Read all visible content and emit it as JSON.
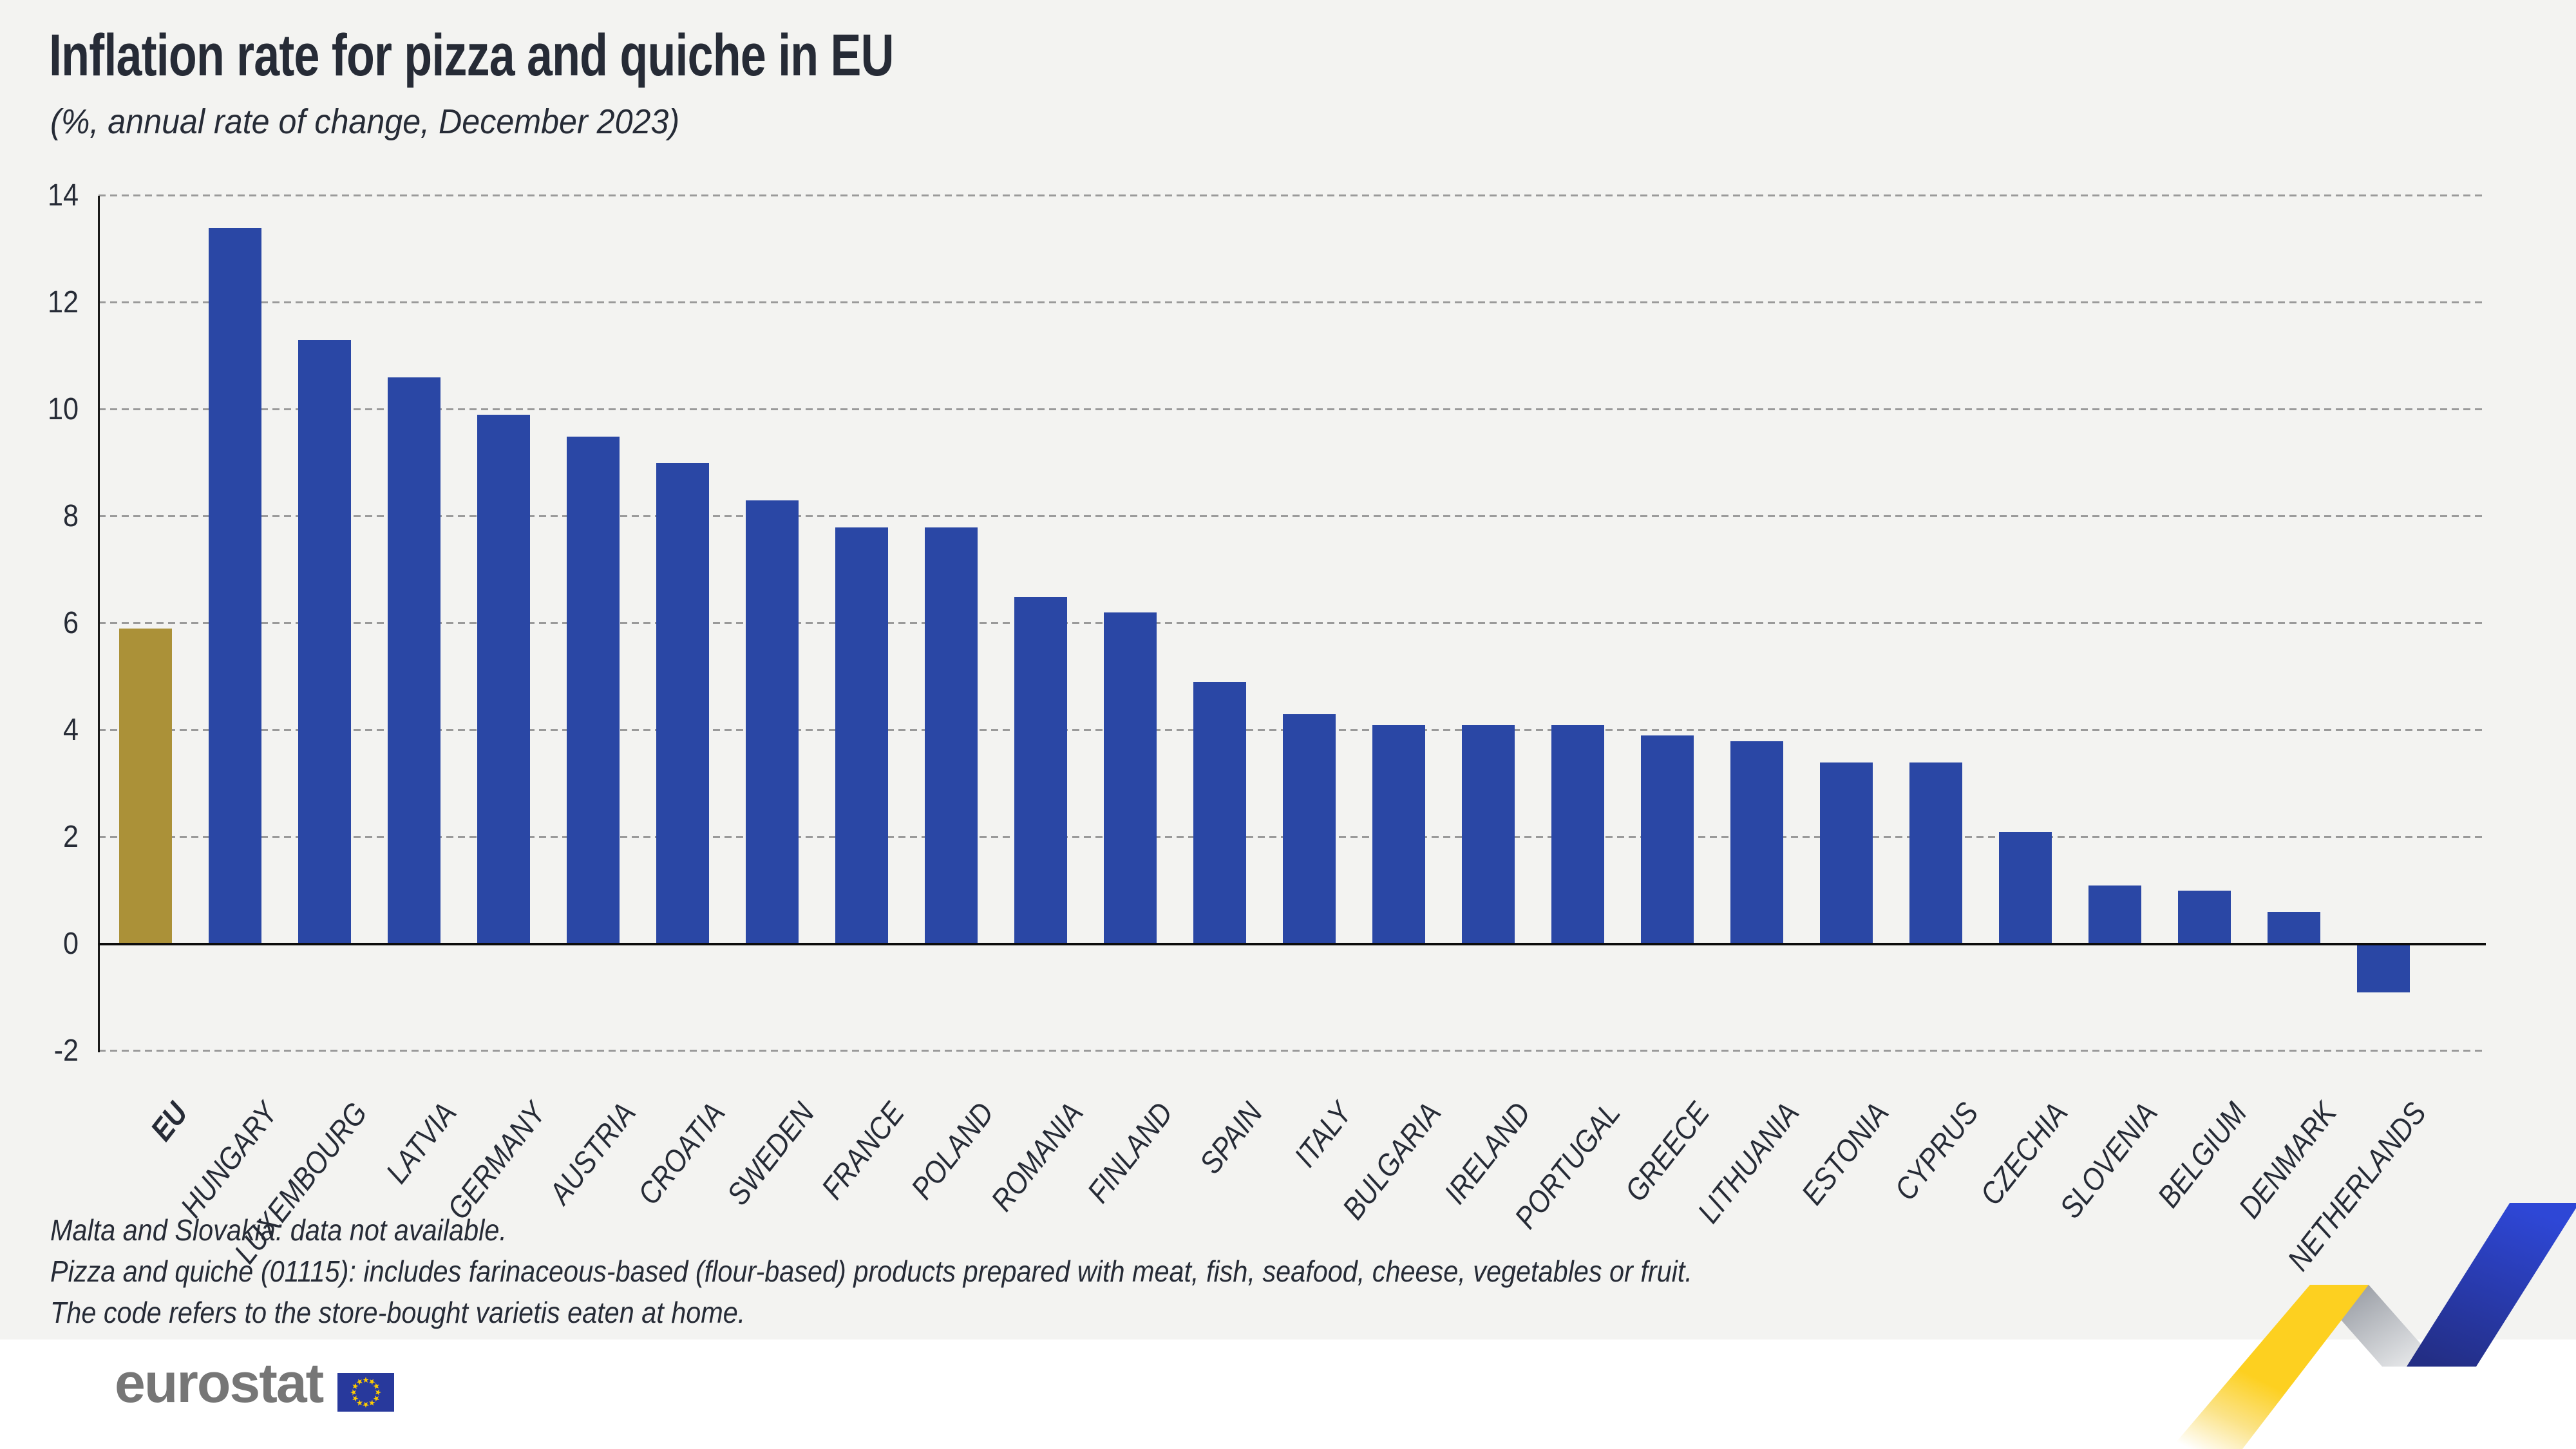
{
  "title": "Inflation rate for pizza and quiche in EU",
  "subtitle": "(%, annual rate of change, December 2023)",
  "chart_data": {
    "type": "bar",
    "categories": [
      "EU",
      "HUNGARY",
      "LUXEMBOURG",
      "LATVIA",
      "GERMANY",
      "AUSTRIA",
      "CROATIA",
      "SWEDEN",
      "FRANCE",
      "POLAND",
      "ROMANIA",
      "FINLAND",
      "SPAIN",
      "ITALY",
      "BULGARIA",
      "IRELAND",
      "PORTUGAL",
      "GREECE",
      "LITHUANIA",
      "ESTONIA",
      "CYPRUS",
      "CZECHIA",
      "SLOVENIA",
      "BELGIUM",
      "DENMARK",
      "NETHERLANDS"
    ],
    "values": [
      5.9,
      13.4,
      11.3,
      10.6,
      9.9,
      9.5,
      9.0,
      8.3,
      7.8,
      7.8,
      6.5,
      6.2,
      4.9,
      4.3,
      4.1,
      4.1,
      4.1,
      3.9,
      3.8,
      3.4,
      3.4,
      2.1,
      1.1,
      1.0,
      0.6,
      -0.9
    ],
    "title": "Inflation rate for pizza and quiche in EU",
    "subtitle": "(%, annual rate of change, December 2023)",
    "xlabel": "",
    "ylabel": "",
    "y_axis": {
      "ticks": [
        14,
        12,
        10,
        8,
        6,
        4,
        2,
        0,
        -2
      ],
      "min": -2,
      "max": 14
    },
    "grid": "horizontal-dashed",
    "legend": "none",
    "highlight_category": "EU",
    "highlight_color": "#ab9138",
    "bar_color": "#2a47a5"
  },
  "footnotes": {
    "line1": "Malta and Slovakia: data not available.",
    "line2": "Pizza and quiche (01115): includes farinaceous-based (flour-based) products prepared with meat, fish, seafood, cheese, vegetables or fruit.",
    "line3": "The code refers to the store-bought varietis eaten at home."
  },
  "logo": {
    "text": "eurostat",
    "flag_blue": "#28399c",
    "star_yellow": "#ffcc00"
  },
  "colors": {
    "background": "#f3f3f1",
    "footer_band": "#ffffff",
    "text": "#262b36",
    "gridline": "#9a9a9a",
    "zero_line": "#0c0c0c",
    "ribbon_yellow": "#fdd020",
    "ribbon_gray": "#868b94",
    "ribbon_blue_dark": "#232e85",
    "ribbon_blue_bright": "#2e47d6"
  }
}
